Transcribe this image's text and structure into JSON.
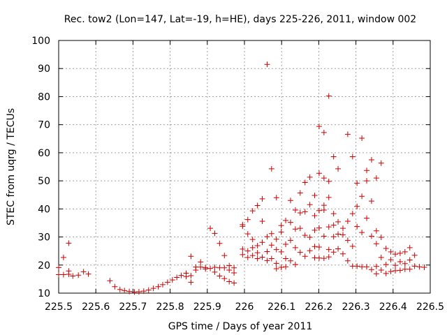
{
  "chart_data": {
    "type": "scatter",
    "title": "Rec. tow2 (Lon=147, Lat=-19, h=HE), days 225-226, 2011, window 002",
    "xlabel": "GPS time / Days of year 2011",
    "ylabel": "STEC from uqrg / TECUs",
    "xlim": [
      225.5,
      226.5
    ],
    "ylim": [
      10,
      100
    ],
    "xticks": [
      225.5,
      225.6,
      225.7,
      225.8,
      225.9,
      226,
      226.1,
      226.2,
      226.3,
      226.4,
      226.5
    ],
    "xtick_labels": [
      "225.5",
      "225.6",
      "225.7",
      "225.8",
      "225.9",
      "226",
      "226.1",
      "226.2",
      "226.3",
      "226.4",
      "226.5"
    ],
    "yticks": [
      10,
      20,
      30,
      40,
      50,
      60,
      70,
      80,
      90,
      100
    ],
    "ytick_labels": [
      "10",
      "20",
      "30",
      "40",
      "50",
      "60",
      "70",
      "80",
      "90",
      "100"
    ],
    "grid": true,
    "marker": "plus",
    "color": "#cc0000",
    "points": [
      [
        225.5,
        16.6
      ],
      [
        225.5,
        19.1
      ],
      [
        225.513,
        16.6
      ],
      [
        225.513,
        22.7
      ],
      [
        225.527,
        17.9
      ],
      [
        225.527,
        27.8
      ],
      [
        225.527,
        16.7
      ],
      [
        225.538,
        16.1
      ],
      [
        225.553,
        16.4
      ],
      [
        225.567,
        17.6
      ],
      [
        225.58,
        16.8
      ],
      [
        225.638,
        14.4
      ],
      [
        225.651,
        12.3
      ],
      [
        225.665,
        11.3
      ],
      [
        225.677,
        10.9
      ],
      [
        225.69,
        10.6
      ],
      [
        225.704,
        10.4
      ],
      [
        225.716,
        10.5
      ],
      [
        225.729,
        10.7
      ],
      [
        225.742,
        11.1
      ],
      [
        225.755,
        11.7
      ],
      [
        225.768,
        12.3
      ],
      [
        225.78,
        13.0
      ],
      [
        225.793,
        13.9
      ],
      [
        225.806,
        14.7
      ],
      [
        225.818,
        15.6
      ],
      [
        225.83,
        16.3
      ],
      [
        225.843,
        15.9
      ],
      [
        225.843,
        17.1
      ],
      [
        225.856,
        13.9
      ],
      [
        225.856,
        16.2
      ],
      [
        225.856,
        23.1
      ],
      [
        225.869,
        18.2
      ],
      [
        225.869,
        19.3
      ],
      [
        225.882,
        21.1
      ],
      [
        225.882,
        19.3
      ],
      [
        225.895,
        19.1
      ],
      [
        225.895,
        18.6
      ],
      [
        225.908,
        18.8
      ],
      [
        225.908,
        33.1
      ],
      [
        225.92,
        31.3
      ],
      [
        225.92,
        17.5
      ],
      [
        225.92,
        19.2
      ],
      [
        225.933,
        27.7
      ],
      [
        225.933,
        16.1
      ],
      [
        225.933,
        19.0
      ],
      [
        225.946,
        23.4
      ],
      [
        225.946,
        15.2
      ],
      [
        225.946,
        19.0
      ],
      [
        225.959,
        19.8
      ],
      [
        225.959,
        14.1
      ],
      [
        225.959,
        18.2
      ],
      [
        225.972,
        13.6
      ],
      [
        225.972,
        17.2
      ],
      [
        225.972,
        19.0
      ],
      [
        225.995,
        34.4
      ],
      [
        225.995,
        33.8
      ],
      [
        225.995,
        25.7
      ],
      [
        225.995,
        23.7
      ],
      [
        226.009,
        36.2
      ],
      [
        226.009,
        31.1
      ],
      [
        226.009,
        25.0
      ],
      [
        226.009,
        22.7
      ],
      [
        226.022,
        39.3
      ],
      [
        226.022,
        29.1
      ],
      [
        226.022,
        26.2
      ],
      [
        226.022,
        23.4
      ],
      [
        226.035,
        41.2
      ],
      [
        226.035,
        26.9
      ],
      [
        226.035,
        24.4
      ],
      [
        226.035,
        22.3
      ],
      [
        226.048,
        43.6
      ],
      [
        226.048,
        35.6
      ],
      [
        226.048,
        28.1
      ],
      [
        226.048,
        22.8
      ],
      [
        226.061,
        91.5
      ],
      [
        226.061,
        30.1
      ],
      [
        226.061,
        24.8
      ],
      [
        226.061,
        21.6
      ],
      [
        226.073,
        54.3
      ],
      [
        226.073,
        31.2
      ],
      [
        226.073,
        27.1
      ],
      [
        226.073,
        22.3
      ],
      [
        226.086,
        44.0
      ],
      [
        226.086,
        29.2
      ],
      [
        226.086,
        25.5
      ],
      [
        226.086,
        20.6
      ],
      [
        226.086,
        18.7
      ],
      [
        226.099,
        34.1
      ],
      [
        226.099,
        31.8
      ],
      [
        226.099,
        24.7
      ],
      [
        226.099,
        19.2
      ],
      [
        226.111,
        35.9
      ],
      [
        226.111,
        27.4
      ],
      [
        226.111,
        22.3
      ],
      [
        226.111,
        19.4
      ],
      [
        226.124,
        43.0
      ],
      [
        226.124,
        35.2
      ],
      [
        226.124,
        28.8
      ],
      [
        226.124,
        21.5
      ],
      [
        226.137,
        39.6
      ],
      [
        226.137,
        32.8
      ],
      [
        226.137,
        26.2
      ],
      [
        226.137,
        20.2
      ],
      [
        226.15,
        45.7
      ],
      [
        226.15,
        38.6
      ],
      [
        226.15,
        33.1
      ],
      [
        226.15,
        24.5
      ],
      [
        226.163,
        49.4
      ],
      [
        226.163,
        39.0
      ],
      [
        226.163,
        30.6
      ],
      [
        226.163,
        23.1
      ],
      [
        226.176,
        51.3
      ],
      [
        226.176,
        41.5
      ],
      [
        226.176,
        29.9
      ],
      [
        226.176,
        25.1
      ],
      [
        226.189,
        44.8
      ],
      [
        226.189,
        37.6
      ],
      [
        226.189,
        32.4
      ],
      [
        226.189,
        26.6
      ],
      [
        226.189,
        22.6
      ],
      [
        226.201,
        69.4
      ],
      [
        226.201,
        52.7
      ],
      [
        226.201,
        39.4
      ],
      [
        226.201,
        33.2
      ],
      [
        226.201,
        26.4
      ],
      [
        226.201,
        22.5
      ],
      [
        226.214,
        67.2
      ],
      [
        226.214,
        51.0
      ],
      [
        226.214,
        41.3
      ],
      [
        226.214,
        39.6
      ],
      [
        226.214,
        30.3
      ],
      [
        226.214,
        22.4
      ],
      [
        226.227,
        80.2
      ],
      [
        226.227,
        49.8
      ],
      [
        226.227,
        44.1
      ],
      [
        226.227,
        33.6
      ],
      [
        226.227,
        25.5
      ],
      [
        226.227,
        22.9
      ],
      [
        226.24,
        58.6
      ],
      [
        226.24,
        38.3
      ],
      [
        226.24,
        34.2
      ],
      [
        226.24,
        30.1
      ],
      [
        226.24,
        24.6
      ],
      [
        226.252,
        54.3
      ],
      [
        226.252,
        35.4
      ],
      [
        226.252,
        31.0
      ],
      [
        226.252,
        25.8
      ],
      [
        226.265,
        33.1
      ],
      [
        226.265,
        30.8
      ],
      [
        226.265,
        24.0
      ],
      [
        226.278,
        66.6
      ],
      [
        226.278,
        35.6
      ],
      [
        226.278,
        28.8
      ],
      [
        226.278,
        21.5
      ],
      [
        226.291,
        58.6
      ],
      [
        226.291,
        38.3
      ],
      [
        226.291,
        26.7
      ],
      [
        226.291,
        19.6
      ],
      [
        226.303,
        49.2
      ],
      [
        226.303,
        40.9
      ],
      [
        226.303,
        33.7
      ],
      [
        226.303,
        19.6
      ],
      [
        226.316,
        65.2
      ],
      [
        226.316,
        44.5
      ],
      [
        226.316,
        31.6
      ],
      [
        226.316,
        19.4
      ],
      [
        226.329,
        53.7
      ],
      [
        226.329,
        50.0
      ],
      [
        226.329,
        36.7
      ],
      [
        226.329,
        19.4
      ],
      [
        226.342,
        57.5
      ],
      [
        226.342,
        42.8
      ],
      [
        226.342,
        30.3
      ],
      [
        226.342,
        18.4
      ],
      [
        226.355,
        51.0
      ],
      [
        226.355,
        32.2
      ],
      [
        226.355,
        27.6
      ],
      [
        226.355,
        19.5
      ],
      [
        226.355,
        16.9
      ],
      [
        226.368,
        56.3
      ],
      [
        226.368,
        29.9
      ],
      [
        226.368,
        22.7
      ],
      [
        226.368,
        18.2
      ],
      [
        226.381,
        25.9
      ],
      [
        226.381,
        20.2
      ],
      [
        226.381,
        17.0
      ],
      [
        226.394,
        24.7
      ],
      [
        226.394,
        21.9
      ],
      [
        226.394,
        17.7
      ],
      [
        226.406,
        23.9
      ],
      [
        226.406,
        19.9
      ],
      [
        226.406,
        18.0
      ],
      [
        226.419,
        24.2
      ],
      [
        226.419,
        21.2
      ],
      [
        226.419,
        18.1
      ],
      [
        226.432,
        24.7
      ],
      [
        226.432,
        20.5
      ],
      [
        226.432,
        18.5
      ],
      [
        226.445,
        26.2
      ],
      [
        226.445,
        21.8
      ],
      [
        226.445,
        18.5
      ],
      [
        226.458,
        23.5
      ],
      [
        226.458,
        19.6
      ],
      [
        226.471,
        19.4
      ],
      [
        226.484,
        19.2
      ]
    ]
  }
}
